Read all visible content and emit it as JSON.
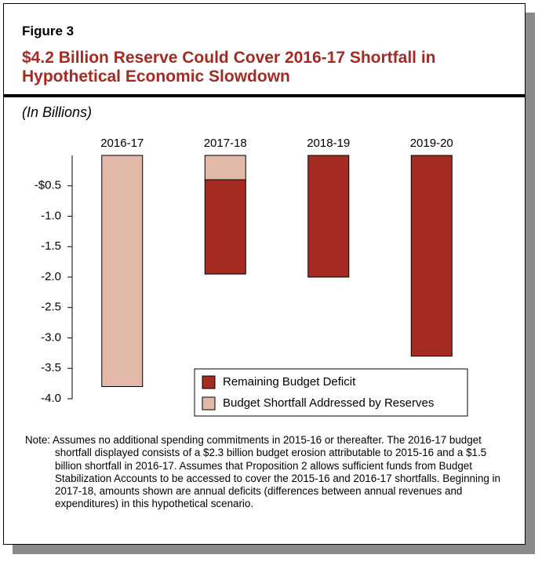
{
  "chart_data": {
    "type": "stacked-bar",
    "figure_label": "Figure 3",
    "title": "$4.2 Billion Reserve Could Cover 2016-17 Shortfall in Hypothetical Economic Slowdown",
    "subtitle": "(In Billions)",
    "categories": [
      "2016-17",
      "2017-18",
      "2018-19",
      "2019-20"
    ],
    "series": [
      {
        "name": "Remaining Budget Deficit",
        "color": "#a52a22",
        "values": [
          null,
          -1.55,
          -2.0,
          -3.3
        ]
      },
      {
        "name": "Budget Shortfall Addressed by Reserves",
        "color": "#e2b9a8",
        "values": [
          -3.8,
          -0.4,
          null,
          null
        ]
      }
    ],
    "ylim": [
      -4.0,
      0
    ],
    "yticks": [
      {
        "value": -0.5,
        "label": "-$0.5"
      },
      {
        "value": -1.0,
        "label": "-1.0"
      },
      {
        "value": -1.5,
        "label": "-1.5"
      },
      {
        "value": -2.0,
        "label": "-2.0"
      },
      {
        "value": -2.5,
        "label": "-2.5"
      },
      {
        "value": -3.0,
        "label": "-3.0"
      },
      {
        "value": -3.5,
        "label": "-3.5"
      },
      {
        "value": -4.0,
        "label": "-4.0"
      }
    ],
    "note": "Note: Assumes no additional spending commitments in 2015-16 or thereafter. The 2016-17 budget shortfall displayed consists of a $2.3 billion budget erosion attributable to 2015-16 and a $1.5 billion shortfall in 2016-17. Assumes that Proposition 2 allows sufficient funds from Budget Stabilization Accounts to be accessed to cover the 2015-16 and 2016-17 shortfalls. Beginning in 2017-18, amounts shown are annual deficits (differences between annual revenues and expenditures) in this hypothetical scenario."
  }
}
